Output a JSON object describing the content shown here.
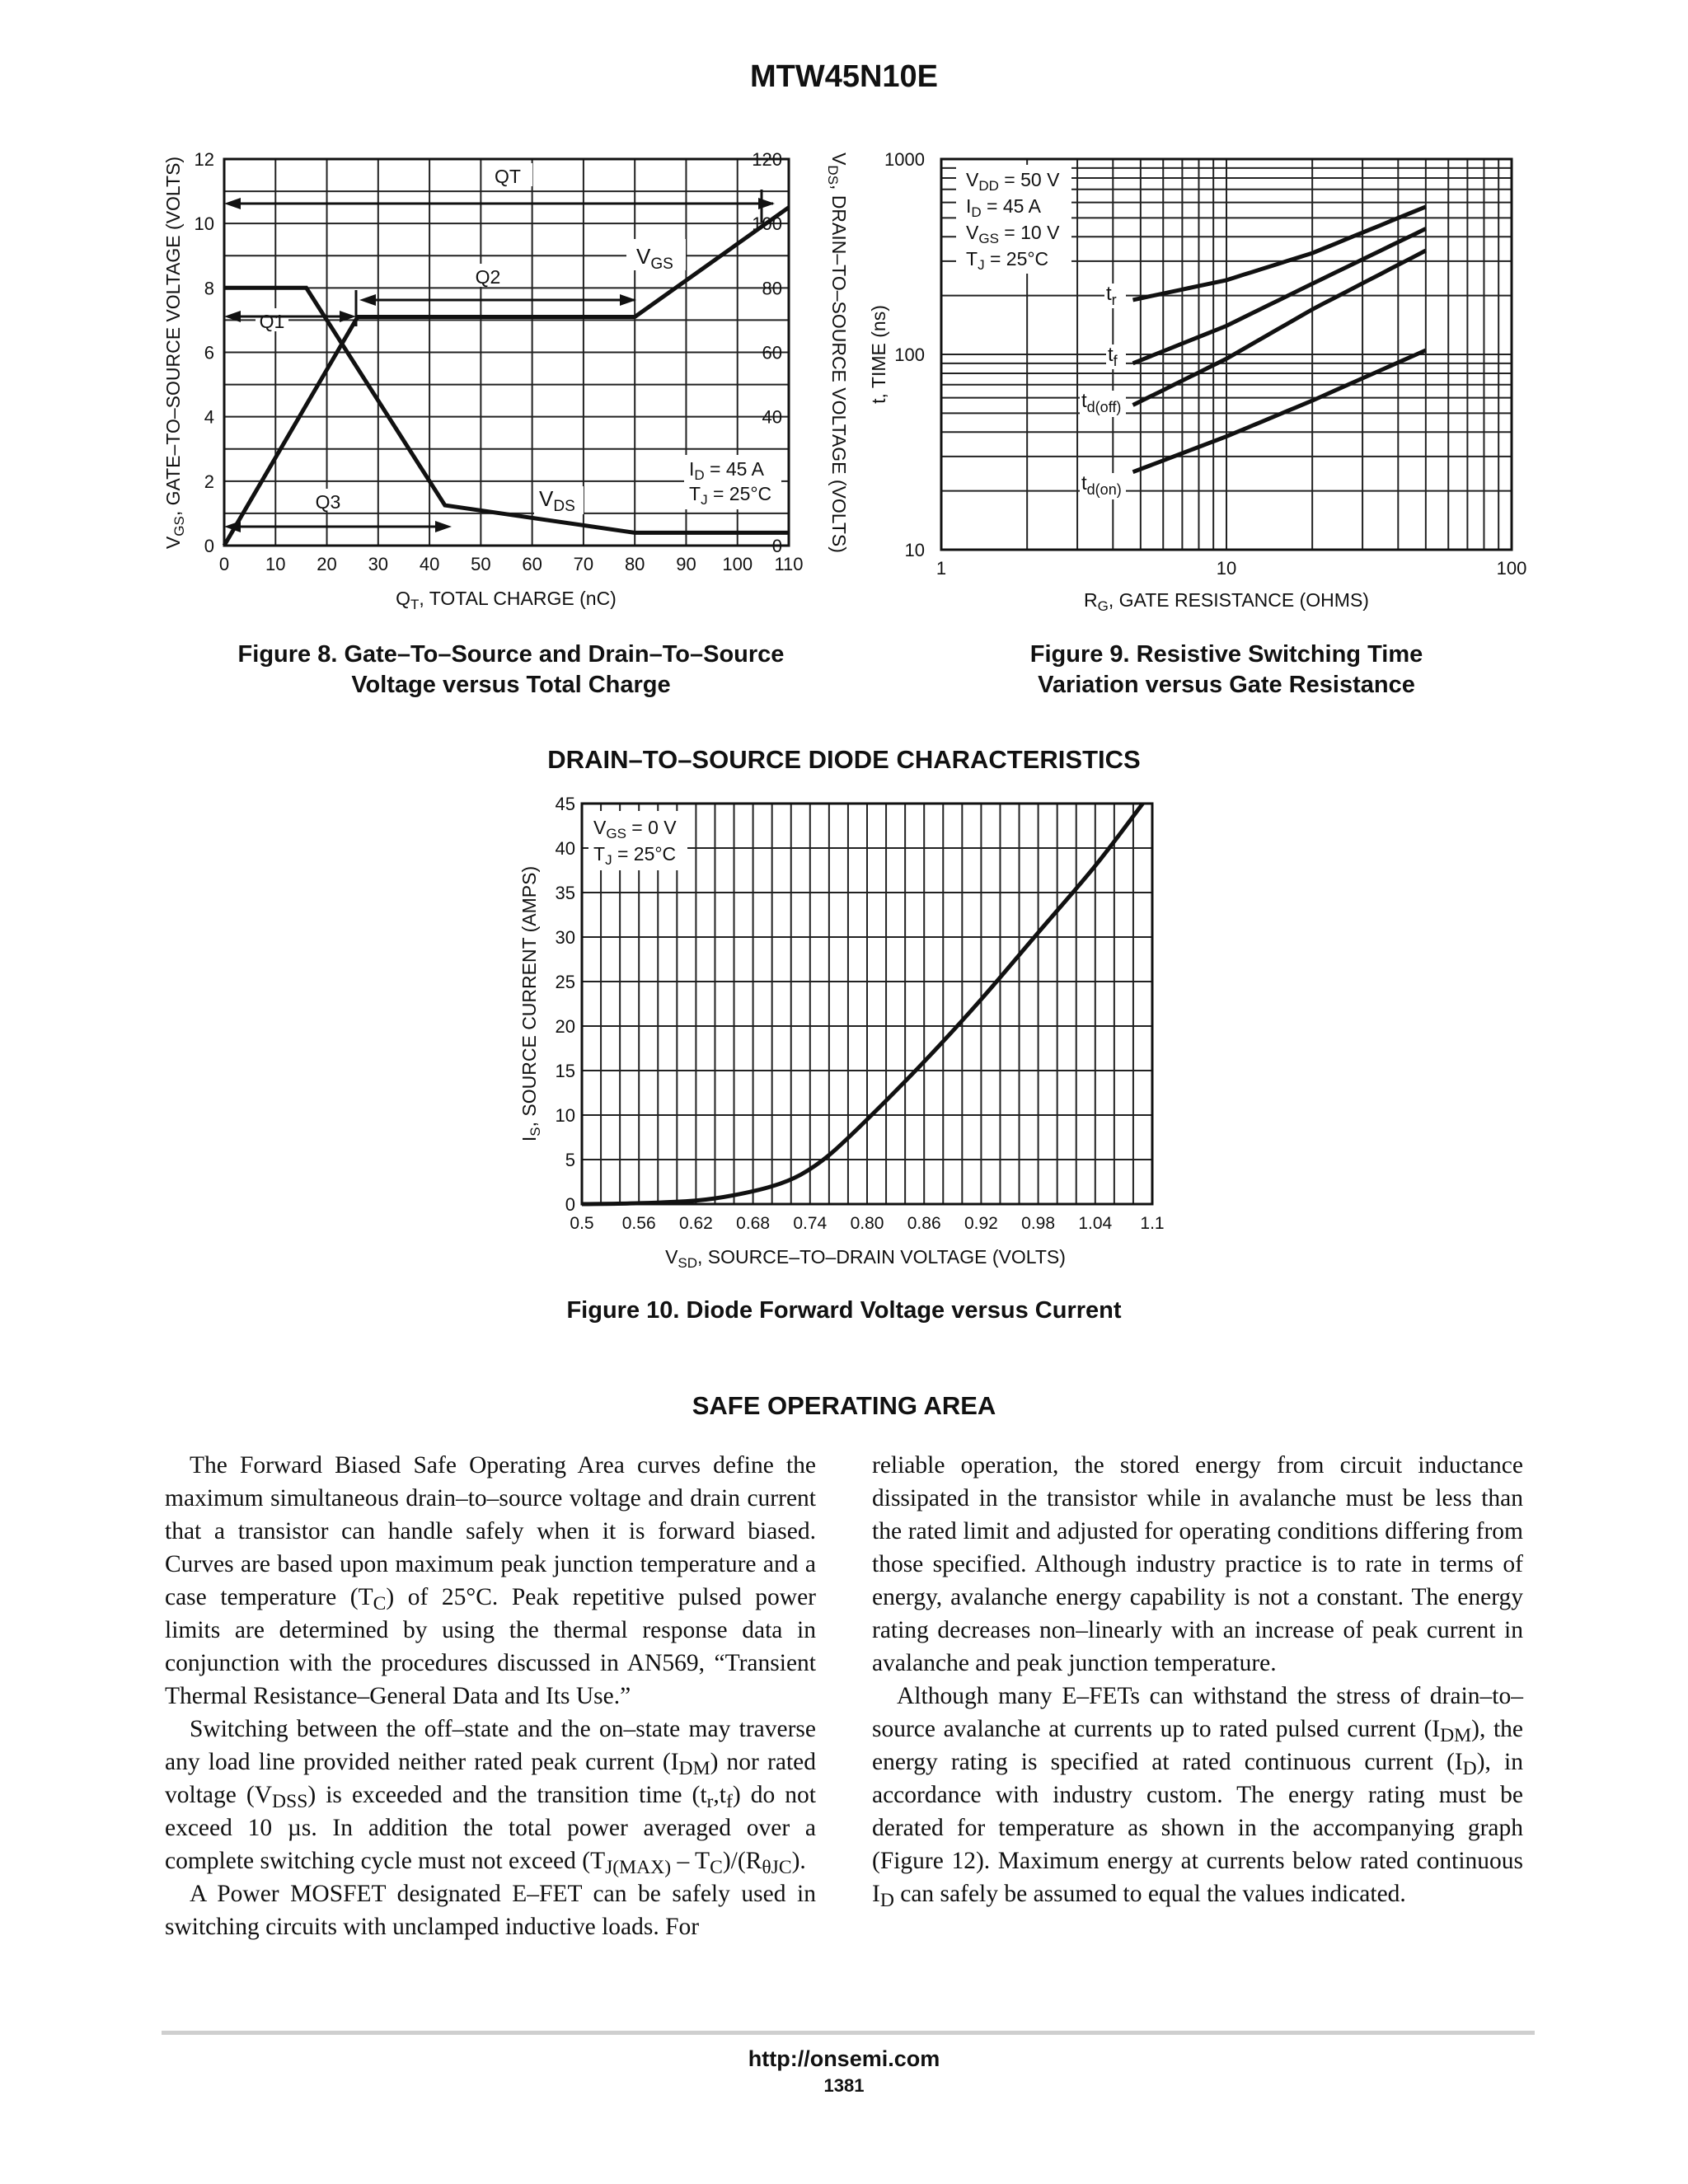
{
  "header": {
    "part_number": "MTW45N10E"
  },
  "figures": {
    "fig8": {
      "caption_line1": "Figure 8. Gate–To–Source and Drain–To–Source",
      "caption_line2": "Voltage versus Total Charge",
      "ylabel_left_pre": "V",
      "ylabel_left_sub": "GS",
      "ylabel_left_post": ", GATE–TO–SOURCE VOLTAGE (VOLTS)",
      "ylabel_right_pre": "V",
      "ylabel_right_sub": "DS",
      "ylabel_right_post": ", DRAIN–TO–SOURCE VOLTAGE (VOLTS)",
      "xlabel_pre": "Q",
      "xlabel_sub": "T",
      "xlabel_post": ", TOTAL CHARGE (nC)",
      "left_ticks": [
        "0",
        "2",
        "4",
        "6",
        "8",
        "10",
        "12"
      ],
      "right_ticks": [
        "0",
        "20",
        "40",
        "60",
        "80",
        "100",
        "120"
      ],
      "x_ticks": [
        "0",
        "10",
        "20",
        "30",
        "40",
        "50",
        "60",
        "70",
        "80",
        "90",
        "100",
        "110"
      ],
      "label_QT": "QT",
      "label_Q1": "Q1",
      "label_Q2": "Q2",
      "label_Q3": "Q3",
      "label_vgs": "V",
      "label_vgs_sub": "GS",
      "label_vds": "V",
      "label_vds_sub": "DS",
      "cond_id": "I",
      "cond_id_sub": "D",
      "cond_id_val": " = 45 A",
      "cond_tj": "T",
      "cond_tj_sub": "J",
      "cond_tj_val": " = 25°C"
    },
    "fig9": {
      "caption_line1": "Figure 9. Resistive Switching Time",
      "caption_line2": "Variation versus Gate Resistance",
      "ylabel": "t, TIME (ns)",
      "xlabel_pre": "R",
      "xlabel_sub": "G",
      "xlabel_post": ", GATE RESISTANCE (OHMS)",
      "y_ticks": [
        "10",
        "100",
        "1000"
      ],
      "x_ticks": [
        "1",
        "10",
        "100"
      ],
      "cond1": [
        "V",
        "DD",
        " = 50 V"
      ],
      "cond2": [
        "I",
        "D",
        " = 45  A"
      ],
      "cond3": [
        "V",
        "GS",
        " = 10 V"
      ],
      "cond4": [
        "T",
        "J",
        " = 25°C"
      ],
      "label_tr": [
        "t",
        "r"
      ],
      "label_tf": [
        "t",
        "f"
      ],
      "label_tdoff": [
        "t",
        "d(off)"
      ],
      "label_tdon": [
        "t",
        "d(on)"
      ]
    },
    "fig10": {
      "section_title": "DRAIN–TO–SOURCE DIODE CHARACTERISTICS",
      "caption": "Figure 10. Diode Forward Voltage versus Current",
      "ylabel_pre": "I",
      "ylabel_sub": "S",
      "ylabel_post": ", SOURCE CURRENT (AMPS)",
      "xlabel_pre": "V",
      "xlabel_sub": "SD",
      "xlabel_post": ", SOURCE–TO–DRAIN VOLTAGE (VOLTS)",
      "y_ticks": [
        "0",
        "5",
        "10",
        "15",
        "20",
        "25",
        "30",
        "35",
        "40",
        "45"
      ],
      "x_ticks": [
        "0.5",
        "0.56",
        "0.62",
        "0.68",
        "0.74",
        "0.80",
        "0.86",
        "0.92",
        "0.98",
        "1.04",
        "1.1"
      ],
      "cond1": [
        "V",
        "GS",
        " = 0 V"
      ],
      "cond2": [
        "T",
        "J",
        " = 25°C"
      ]
    }
  },
  "chart_data": [
    {
      "type": "line",
      "title": "Figure 8. Gate–To–Source and Drain–To–Source Voltage versus Total Charge",
      "xlabel": "QT, TOTAL CHARGE (nC)",
      "ylabel": "VGS, GATE–TO–SOURCE VOLTAGE (VOLTS)",
      "y2label": "VDS, DRAIN–TO–SOURCE VOLTAGE (VOLTS)",
      "xlim": [
        0,
        110
      ],
      "ylim": [
        0,
        12
      ],
      "y2lim": [
        0,
        120
      ],
      "grid": true,
      "series": [
        {
          "name": "VGS",
          "axis": "left",
          "x": [
            0,
            26,
            80,
            110
          ],
          "y": [
            0,
            7.1,
            7.1,
            10.5
          ]
        },
        {
          "name": "VDS",
          "axis": "right",
          "x": [
            0,
            16,
            43,
            80,
            110
          ],
          "y": [
            80,
            80,
            12.5,
            4,
            4
          ]
        }
      ],
      "annotations": [
        "QT",
        "Q1",
        "Q2",
        "Q3",
        "ID = 45 A",
        "TJ = 25°C"
      ]
    },
    {
      "type": "line",
      "title": "Figure 9. Resistive Switching Time Variation versus Gate Resistance",
      "xlabel": "RG, GATE RESISTANCE (OHMS)",
      "ylabel": "t, TIME (ns)",
      "xscale": "log",
      "yscale": "log",
      "xlim": [
        1,
        100
      ],
      "ylim": [
        10,
        1000
      ],
      "grid": true,
      "series": [
        {
          "name": "tr",
          "x": [
            4.7,
            10,
            20,
            50
          ],
          "y": [
            190,
            240,
            330,
            570
          ]
        },
        {
          "name": "tf",
          "x": [
            4.7,
            10,
            20,
            50
          ],
          "y": [
            90,
            140,
            230,
            440
          ]
        },
        {
          "name": "td(off)",
          "x": [
            4.7,
            10,
            20,
            50
          ],
          "y": [
            55,
            95,
            170,
            340
          ]
        },
        {
          "name": "td(on)",
          "x": [
            4.7,
            10,
            20,
            50
          ],
          "y": [
            25,
            38,
            58,
            105
          ]
        }
      ],
      "annotations": [
        "VDD = 50 V",
        "ID = 45  A",
        "VGS = 10 V",
        "TJ = 25°C"
      ]
    },
    {
      "type": "line",
      "title": "Figure 10. Diode Forward Voltage versus Current",
      "xlabel": "VSD, SOURCE–TO–DRAIN VOLTAGE (VOLTS)",
      "ylabel": "IS, SOURCE CURRENT (AMPS)",
      "xlim": [
        0.5,
        1.1
      ],
      "ylim": [
        0,
        45
      ],
      "grid": true,
      "series": [
        {
          "name": "IS",
          "x": [
            0.5,
            0.56,
            0.62,
            0.66,
            0.7,
            0.73,
            0.76,
            0.8,
            0.86,
            0.92,
            0.98,
            1.04,
            1.09
          ],
          "y": [
            0,
            0.1,
            0.4,
            1.0,
            2.0,
            3.3,
            5.5,
            9.5,
            16.0,
            23.0,
            30.5,
            38.0,
            45.0
          ]
        }
      ],
      "annotations": [
        "VGS = 0 V",
        "TJ = 25°C"
      ]
    }
  ],
  "soa": {
    "heading": "SAFE OPERATING AREA",
    "left_p1": "The Forward Biased Safe Operating Area curves define the maximum simultaneous drain–to–source voltage and drain current that a transistor can handle safely when it is forward biased. Curves are based upon maximum peak junction temperature and a case temperature (T",
    "left_p1_sub": "C",
    "left_p1_tail": ") of 25°C. Peak repetitive pulsed power limits are determined by using the thermal response data in conjunction with the procedures discussed in AN569, “Transient Thermal Resistance–General Data and Its Use.”",
    "left_p2_a": "Switching between the off–state and the on–state may traverse any load line provided neither rated peak current (I",
    "left_p2_sub1": "DM",
    "left_p2_b": ") nor rated voltage (V",
    "left_p2_sub2": "DSS",
    "left_p2_c": ") is exceeded and the transition time (t",
    "left_p2_sub3": "r",
    "left_p2_d": ",t",
    "left_p2_sub4": "f",
    "left_p2_e": ") do not exceed 10 µs. In addition the total power averaged over a complete switching cycle must not exceed (T",
    "left_p2_sub5": "J(MAX)",
    "left_p2_f": " – T",
    "left_p2_sub6": "C",
    "left_p2_g": ")/(R",
    "left_p2_sub7": "θJC",
    "left_p2_h": ").",
    "left_p3": "A Power MOSFET designated E–FET can be safely used in switching circuits with unclamped inductive loads. For",
    "right_p1": "reliable operation, the stored energy from circuit inductance dissipated in the transistor while in avalanche must be less than the rated limit and adjusted for operating conditions differing from those specified. Although industry practice is to rate in terms of energy, avalanche energy capability is not a constant. The energy rating decreases non–linearly with an increase of peak current in avalanche and peak junction temperature.",
    "right_p2_a": "Although many E–FETs can withstand the stress of drain–to–source avalanche at currents up to rated pulsed current (I",
    "right_p2_sub1": "DM",
    "right_p2_b": "), the energy rating is specified at rated continuous current (I",
    "right_p2_sub2": "D",
    "right_p2_c": "), in accordance with industry custom. The energy rating must be derated for temperature as shown in the accompanying graph (Figure 12). Maximum energy at currents below rated continuous I",
    "right_p2_sub3": "D",
    "right_p2_d": " can safely be assumed to equal the values indicated."
  },
  "footer": {
    "url": "http://onsemi.com",
    "page": "1381"
  }
}
